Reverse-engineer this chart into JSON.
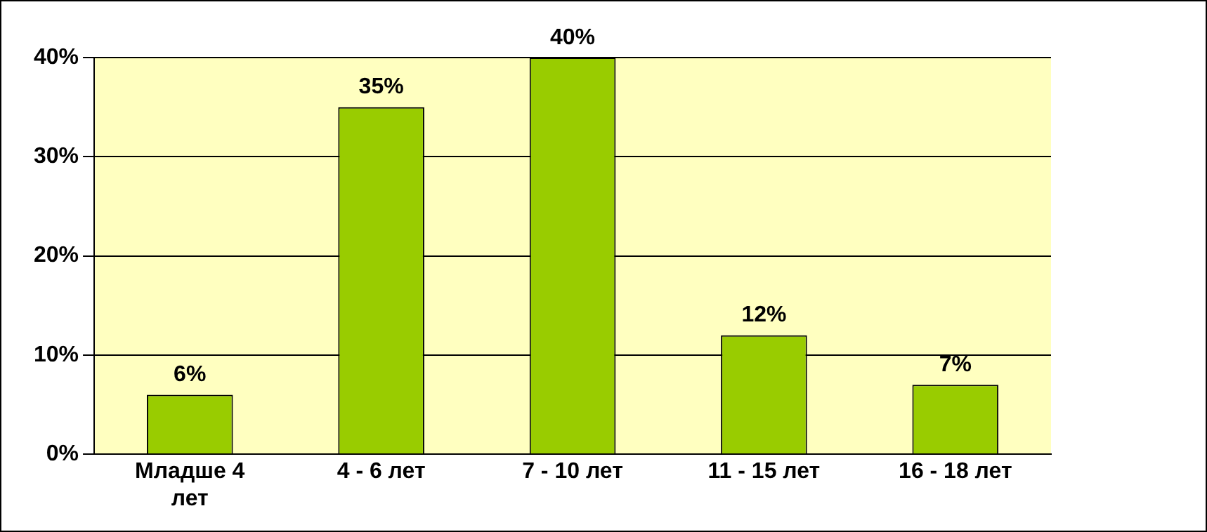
{
  "chart_data": {
    "type": "bar",
    "categories": [
      "Младше 4 лет",
      "4 - 6 лет",
      "7 - 10 лет",
      "11 - 15 лет",
      "16 - 18 лет"
    ],
    "values": [
      6,
      35,
      40,
      12,
      7
    ],
    "color": "#99cc00",
    "value_labels": [
      "6%",
      "35%",
      "40%",
      "12%",
      "7%"
    ],
    "ylim": [
      0,
      40
    ],
    "yticks": [
      {
        "value": 0,
        "label": "0%"
      },
      {
        "value": 10,
        "label": "10%"
      },
      {
        "value": 20,
        "label": "20%"
      },
      {
        "value": 30,
        "label": "30%"
      },
      {
        "value": 40,
        "label": "40%"
      }
    ],
    "grid": "y",
    "legend": false
  }
}
